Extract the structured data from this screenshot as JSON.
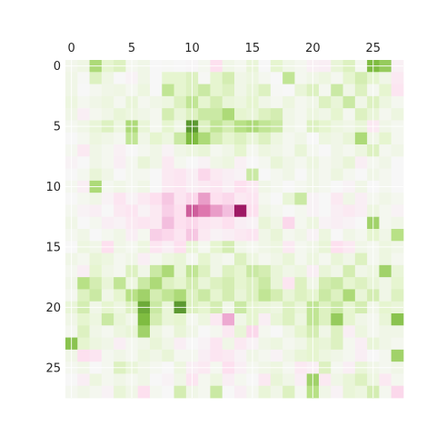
{
  "chart_data": {
    "type": "heatmap",
    "rows": 28,
    "cols": 28,
    "colormap": "PiYG",
    "vmin": -1,
    "vmax": 1,
    "x_ticks": [
      0,
      5,
      10,
      15,
      20,
      25
    ],
    "y_ticks": [
      0,
      5,
      10,
      15,
      20,
      25
    ],
    "grid": true,
    "grid_color": "#ffffff",
    "colors": {
      "deep_pink": "#8e0152",
      "pink": "#de77ae",
      "light_pink": "#f1b6da",
      "pale_pink": "#fde0ef",
      "neutral": "#f7f7f7",
      "pale_green": "#e6f5d0",
      "light_green": "#b8e186",
      "green": "#7fbc41",
      "deep_green": "#276419"
    },
    "values": [
      [
        0.08,
        0.12,
        0.55,
        0.25,
        0.3,
        0.05,
        0.1,
        0.0,
        0.02,
        0.0,
        -0.02,
        0.05,
        -0.25,
        0.1,
        0.05,
        0.2,
        0.0,
        0.25,
        0.1,
        0.05,
        -0.08,
        -0.1,
        0.2,
        0.3,
        0.05,
        0.75,
        0.65,
        -0.08
      ],
      [
        0.1,
        0.02,
        0.3,
        0.12,
        0.0,
        -0.05,
        0.1,
        0.0,
        0.25,
        0.25,
        0.3,
        0.02,
        0.25,
        0.35,
        0.1,
        0.15,
        0.05,
        0.0,
        0.45,
        0.05,
        0.1,
        0.15,
        0.05,
        0.25,
        0.35,
        0.25,
        0.1,
        -0.15
      ],
      [
        0.1,
        0.0,
        0.05,
        0.1,
        0.12,
        0.05,
        0.15,
        0.0,
        0.45,
        0.25,
        0.3,
        0.4,
        0.25,
        0.3,
        0.1,
        0.2,
        0.3,
        0.02,
        0.0,
        0.2,
        0.3,
        0.05,
        0.4,
        0.1,
        0.3,
        0.05,
        0.25,
        -0.2
      ],
      [
        0.15,
        0.05,
        0.1,
        0.15,
        0.05,
        0.2,
        0.05,
        0.1,
        0.15,
        0.3,
        0.45,
        0.25,
        0.35,
        0.2,
        0.15,
        0.25,
        0.1,
        0.05,
        0.15,
        0.05,
        0.1,
        0.3,
        0.2,
        0.4,
        0.1,
        0.3,
        0.15,
        0.05
      ],
      [
        0.1,
        -0.1,
        0.05,
        0.1,
        0.2,
        0.15,
        0.1,
        0.05,
        0.35,
        0.2,
        0.3,
        0.4,
        0.4,
        0.55,
        0.25,
        0.2,
        0.3,
        0.35,
        0.1,
        0.05,
        0.15,
        0.1,
        0.25,
        0.05,
        0.3,
        0.2,
        0.05,
        0.15
      ],
      [
        0.05,
        0.1,
        0.2,
        0.3,
        0.15,
        0.55,
        0.2,
        0.05,
        0.25,
        0.1,
        0.85,
        0.3,
        0.45,
        0.35,
        0.5,
        0.55,
        0.45,
        0.4,
        0.1,
        0.05,
        0.3,
        0.25,
        0.15,
        0.1,
        0.2,
        -0.15,
        0.1,
        0.05
      ],
      [
        0.0,
        0.05,
        0.15,
        0.1,
        0.05,
        0.45,
        0.1,
        0.25,
        0.15,
        0.4,
        0.75,
        0.55,
        0.35,
        0.25,
        0.3,
        0.2,
        0.3,
        0.15,
        0.05,
        0.1,
        0.0,
        0.15,
        0.1,
        0.2,
        0.55,
        0.1,
        0.25,
        0.05
      ],
      [
        0.05,
        -0.15,
        0.1,
        0.05,
        -0.08,
        0.0,
        0.05,
        0.1,
        -0.05,
        0.1,
        0.15,
        0.2,
        0.05,
        0.1,
        0.25,
        0.05,
        0.15,
        0.1,
        0.05,
        0.2,
        0.05,
        0.0,
        0.1,
        0.05,
        0.15,
        0.3,
        0.05,
        0.1
      ],
      [
        -0.05,
        0.0,
        0.1,
        0.05,
        -0.1,
        0.05,
        0.2,
        0.1,
        -0.15,
        0.05,
        0.0,
        -0.05,
        0.1,
        0.15,
        -0.08,
        0.0,
        0.05,
        0.2,
        0.1,
        0.05,
        0.15,
        0.05,
        0.1,
        0.2,
        -0.1,
        0.05,
        0.1,
        0.0
      ],
      [
        0.0,
        0.05,
        0.2,
        0.1,
        0.0,
        0.05,
        0.05,
        0.0,
        -0.15,
        -0.2,
        -0.1,
        -0.3,
        -0.15,
        -0.1,
        -0.05,
        0.4,
        0.0,
        0.05,
        0.1,
        0.0,
        0.1,
        0.05,
        0.15,
        0.05,
        0.0,
        0.1,
        0.05,
        0.0
      ],
      [
        0.05,
        -0.1,
        0.55,
        0.05,
        0.1,
        0.05,
        0.1,
        0.0,
        -0.15,
        -0.2,
        -0.1,
        -0.15,
        -0.2,
        -0.1,
        -0.25,
        -0.15,
        0.1,
        0.05,
        0.0,
        0.05,
        0.1,
        0.05,
        0.0,
        -0.05,
        0.1,
        0.0,
        0.05,
        0.0
      ],
      [
        0.0,
        0.05,
        0.1,
        -0.05,
        -0.2,
        -0.05,
        -0.15,
        -0.25,
        -0.4,
        -0.2,
        -0.3,
        -0.6,
        -0.25,
        -0.3,
        -0.15,
        -0.2,
        0.05,
        0.0,
        0.2,
        0.4,
        -0.05,
        0.0,
        -0.15,
        0.1,
        -0.1,
        0.05,
        0.1,
        0.05
      ],
      [
        0.05,
        -0.05,
        -0.1,
        0.0,
        -0.15,
        -0.2,
        -0.05,
        -0.15,
        -0.35,
        -0.25,
        -0.8,
        -0.75,
        -0.6,
        -0.45,
        -0.95,
        -0.25,
        0.1,
        0.05,
        0.0,
        0.05,
        -0.05,
        0.0,
        -0.1,
        -0.15,
        -0.1,
        0.15,
        0.05,
        -0.05
      ],
      [
        0.1,
        0.0,
        0.05,
        -0.1,
        -0.05,
        -0.15,
        -0.2,
        -0.15,
        -0.45,
        -0.25,
        -0.3,
        -0.2,
        -0.15,
        -0.25,
        -0.1,
        -0.05,
        0.2,
        0.1,
        -0.3,
        0.05,
        0.15,
        -0.05,
        -0.1,
        -0.05,
        0.0,
        0.6,
        0.05,
        0.1
      ],
      [
        0.05,
        0.1,
        0.0,
        0.05,
        0.1,
        -0.1,
        0.05,
        -0.35,
        -0.3,
        -0.2,
        -0.4,
        -0.15,
        -0.05,
        -0.1,
        -0.15,
        -0.2,
        0.1,
        0.2,
        0.05,
        0.1,
        -0.05,
        0.15,
        0.0,
        0.1,
        0.05,
        0.25,
        0.1,
        0.5
      ],
      [
        0.0,
        0.15,
        0.1,
        -0.25,
        0.1,
        0.05,
        0.15,
        -0.2,
        -0.1,
        -0.25,
        0.2,
        0.05,
        0.25,
        0.35,
        0.1,
        0.05,
        0.1,
        0.15,
        -0.15,
        0.05,
        0.1,
        0.2,
        -0.25,
        -0.15,
        0.1,
        0.05,
        0.15,
        0.1
      ],
      [
        0.1,
        0.05,
        0.2,
        0.15,
        0.05,
        0.1,
        -0.1,
        0.05,
        0.15,
        0.2,
        0.05,
        0.25,
        0.1,
        0.05,
        0.3,
        0.15,
        0.05,
        0.1,
        0.2,
        0.05,
        0.15,
        0.05,
        0.2,
        0.1,
        0.3,
        0.05,
        0.15,
        0.05
      ],
      [
        0.05,
        -0.1,
        0.25,
        0.1,
        0.05,
        0.3,
        0.1,
        0.4,
        0.55,
        0.2,
        0.45,
        0.3,
        0.1,
        0.3,
        0.25,
        0.4,
        0.35,
        0.2,
        0.1,
        0.15,
        -0.1,
        0.2,
        0.1,
        0.35,
        0.1,
        0.15,
        0.6,
        0.2
      ],
      [
        0.1,
        0.5,
        0.35,
        0.2,
        0.45,
        0.15,
        0.4,
        0.55,
        0.3,
        0.25,
        0.35,
        0.2,
        0.3,
        0.35,
        0.25,
        0.3,
        0.4,
        0.2,
        -0.2,
        0.3,
        0.1,
        0.35,
        0.4,
        0.25,
        0.3,
        0.2,
        0.1,
        0.25
      ],
      [
        0.05,
        0.3,
        0.4,
        0.1,
        0.25,
        0.5,
        0.6,
        0.35,
        0.45,
        0.55,
        0.3,
        0.4,
        0.25,
        0.35,
        0.2,
        0.3,
        0.45,
        0.35,
        0.2,
        0.3,
        0.25,
        0.4,
        0.3,
        0.55,
        0.2,
        0.35,
        0.1,
        0.3
      ],
      [
        0.2,
        0.35,
        0.1,
        0.25,
        0.15,
        0.3,
        0.8,
        0.4,
        0.2,
        0.85,
        0.3,
        0.25,
        0.35,
        0.1,
        0.4,
        0.25,
        0.2,
        0.15,
        0.3,
        0.2,
        0.45,
        0.3,
        0.4,
        0.25,
        0.35,
        0.1,
        0.25,
        0.2
      ],
      [
        0.1,
        0.25,
        0.15,
        0.4,
        0.2,
        0.1,
        0.75,
        0.35,
        0.2,
        0.25,
        0.05,
        0.15,
        -0.15,
        -0.55,
        0.1,
        0.25,
        -0.1,
        0.2,
        0.3,
        0.15,
        0.45,
        0.3,
        0.65,
        0.25,
        0.1,
        0.05,
        0.2,
        0.7
      ],
      [
        0.05,
        0.3,
        0.1,
        0.05,
        0.15,
        0.2,
        0.6,
        0.15,
        0.05,
        0.2,
        0.1,
        0.0,
        0.05,
        -0.15,
        0.2,
        -0.3,
        0.05,
        0.0,
        0.1,
        0.25,
        0.35,
        0.1,
        0.3,
        -0.1,
        0.15,
        0.05,
        0.1,
        0.1
      ],
      [
        0.7,
        0.25,
        0.15,
        0.1,
        -0.1,
        0.05,
        0.1,
        0.2,
        0.1,
        -0.1,
        0.0,
        -0.05,
        -0.2,
        0.1,
        -0.15,
        -0.05,
        0.1,
        0.15,
        0.05,
        0.1,
        0.25,
        0.2,
        0.3,
        0.05,
        -0.1,
        0.2,
        0.1,
        0.05
      ],
      [
        0.1,
        -0.25,
        -0.2,
        0.05,
        0.1,
        0.05,
        0.15,
        0.1,
        0.2,
        0.05,
        0.05,
        -0.1,
        -0.2,
        -0.15,
        -0.05,
        0.1,
        0.05,
        -0.05,
        0.1,
        0.2,
        0.25,
        0.15,
        0.1,
        0.05,
        -0.1,
        0.0,
        0.05,
        0.6
      ],
      [
        0.05,
        0.1,
        0.0,
        0.05,
        0.3,
        0.2,
        0.1,
        0.05,
        0.0,
        0.15,
        -0.1,
        -0.15,
        0.05,
        -0.25,
        -0.1,
        0.05,
        0.1,
        0.15,
        0.05,
        -0.15,
        -0.1,
        0.3,
        0.05,
        -0.1,
        0.2,
        0.1,
        0.05,
        0.1
      ],
      [
        0.0,
        -0.1,
        0.15,
        0.05,
        0.1,
        0.05,
        0.1,
        0.0,
        -0.05,
        0.1,
        -0.2,
        0.05,
        0.15,
        -0.1,
        0.05,
        0.0,
        -0.15,
        0.2,
        0.1,
        -0.1,
        0.6,
        -0.15,
        0.1,
        0.2,
        0.3,
        0.15,
        -0.15,
        0.05
      ],
      [
        0.05,
        0.1,
        0.05,
        -0.05,
        0.2,
        0.1,
        -0.25,
        0.05,
        0.0,
        0.35,
        0.1,
        0.05,
        0.4,
        0.0,
        -0.1,
        0.05,
        0.2,
        0.1,
        0.3,
        0.05,
        0.5,
        0.1,
        -0.05,
        0.2,
        0.15,
        0.35,
        0.05,
        -0.3
      ]
    ]
  }
}
